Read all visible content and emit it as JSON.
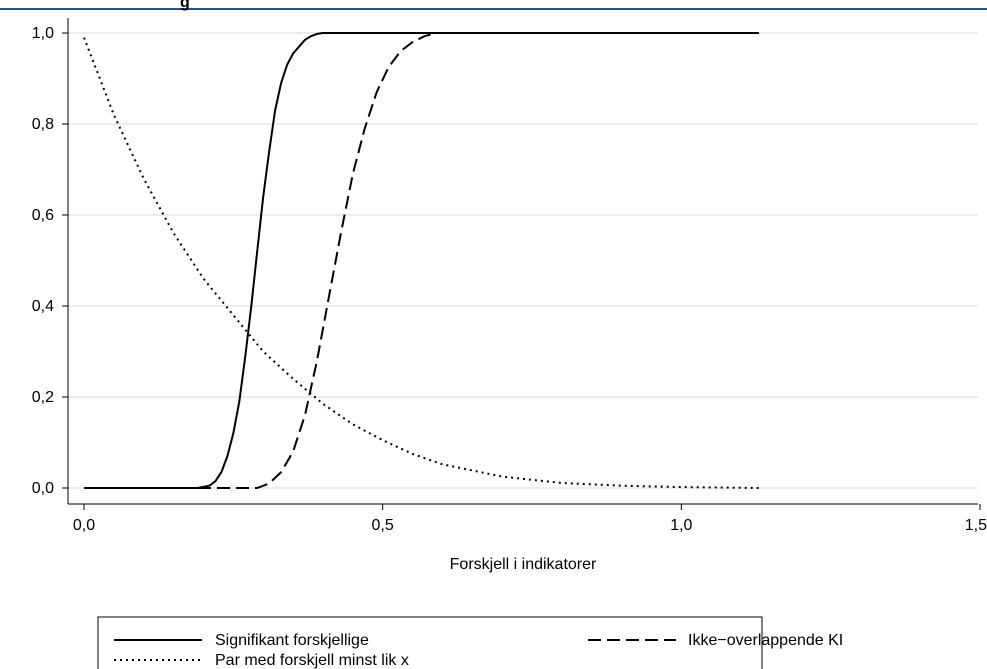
{
  "header": {
    "title_fragment": "g"
  },
  "chart_data": {
    "type": "line",
    "xlabel": "Forskjell i indikatorer",
    "ylabel": "",
    "xlim": [
      0,
      1.5
    ],
    "ylim": [
      0,
      1
    ],
    "x_ticks": [
      0,
      0.5,
      1.0,
      1.5
    ],
    "x_tick_labels": [
      "0,0",
      "0,5",
      "1,0",
      "1,5"
    ],
    "y_ticks": [
      0,
      0.2,
      0.4,
      0.6,
      0.8,
      1.0
    ],
    "y_tick_labels": [
      "0,0",
      "0,2",
      "0,4",
      "0,6",
      "0,8",
      "1,0"
    ],
    "grid": "horizontal",
    "legend_position": "bottom",
    "colors": {
      "line": "#000000",
      "grid": "#d9d9d9",
      "header_rule": "#2b4f8a"
    },
    "series": [
      {
        "name": "Signifikant forskjellige",
        "style": "solid",
        "x": [
          0,
          0.1,
          0.19,
          0.21,
          0.22,
          0.23,
          0.24,
          0.25,
          0.26,
          0.27,
          0.28,
          0.29,
          0.3,
          0.31,
          0.32,
          0.33,
          0.34,
          0.35,
          0.36,
          0.37,
          0.38,
          0.39,
          0.4,
          0.41,
          0.5,
          0.8,
          1.13
        ],
        "y": [
          0,
          0,
          0,
          0.005,
          0.015,
          0.035,
          0.07,
          0.12,
          0.19,
          0.29,
          0.4,
          0.52,
          0.64,
          0.74,
          0.83,
          0.89,
          0.93,
          0.955,
          0.97,
          0.985,
          0.993,
          0.998,
          1.0,
          1.0,
          1.0,
          1.0,
          1.0
        ]
      },
      {
        "name": "Ikke−overlappende KI",
        "style": "dashed",
        "x": [
          0,
          0.2,
          0.29,
          0.31,
          0.33,
          0.35,
          0.37,
          0.39,
          0.41,
          0.43,
          0.45,
          0.47,
          0.49,
          0.51,
          0.53,
          0.55,
          0.57,
          0.59,
          0.8,
          1.13
        ],
        "y": [
          0,
          0,
          0,
          0.01,
          0.035,
          0.08,
          0.16,
          0.28,
          0.42,
          0.56,
          0.69,
          0.79,
          0.87,
          0.925,
          0.96,
          0.98,
          0.993,
          1.0,
          1.0,
          1.0
        ]
      },
      {
        "name": "Par med forskjell minst lik x",
        "style": "dotted",
        "x": [
          0,
          0.05,
          0.1,
          0.15,
          0.2,
          0.25,
          0.3,
          0.35,
          0.4,
          0.45,
          0.5,
          0.55,
          0.6,
          0.7,
          0.8,
          0.9,
          1.0,
          1.13
        ],
        "y": [
          0.99,
          0.82,
          0.68,
          0.56,
          0.46,
          0.38,
          0.3,
          0.24,
          0.185,
          0.14,
          0.105,
          0.075,
          0.052,
          0.025,
          0.011,
          0.005,
          0.002,
          0.0
        ]
      }
    ]
  },
  "legend": {
    "items": [
      {
        "label": "Signifikant forskjellige",
        "style": "solid"
      },
      {
        "label": "Ikke−overlappende KI",
        "style": "dashed"
      },
      {
        "label": "Par med forskjell minst lik x",
        "style": "dotted"
      }
    ]
  }
}
